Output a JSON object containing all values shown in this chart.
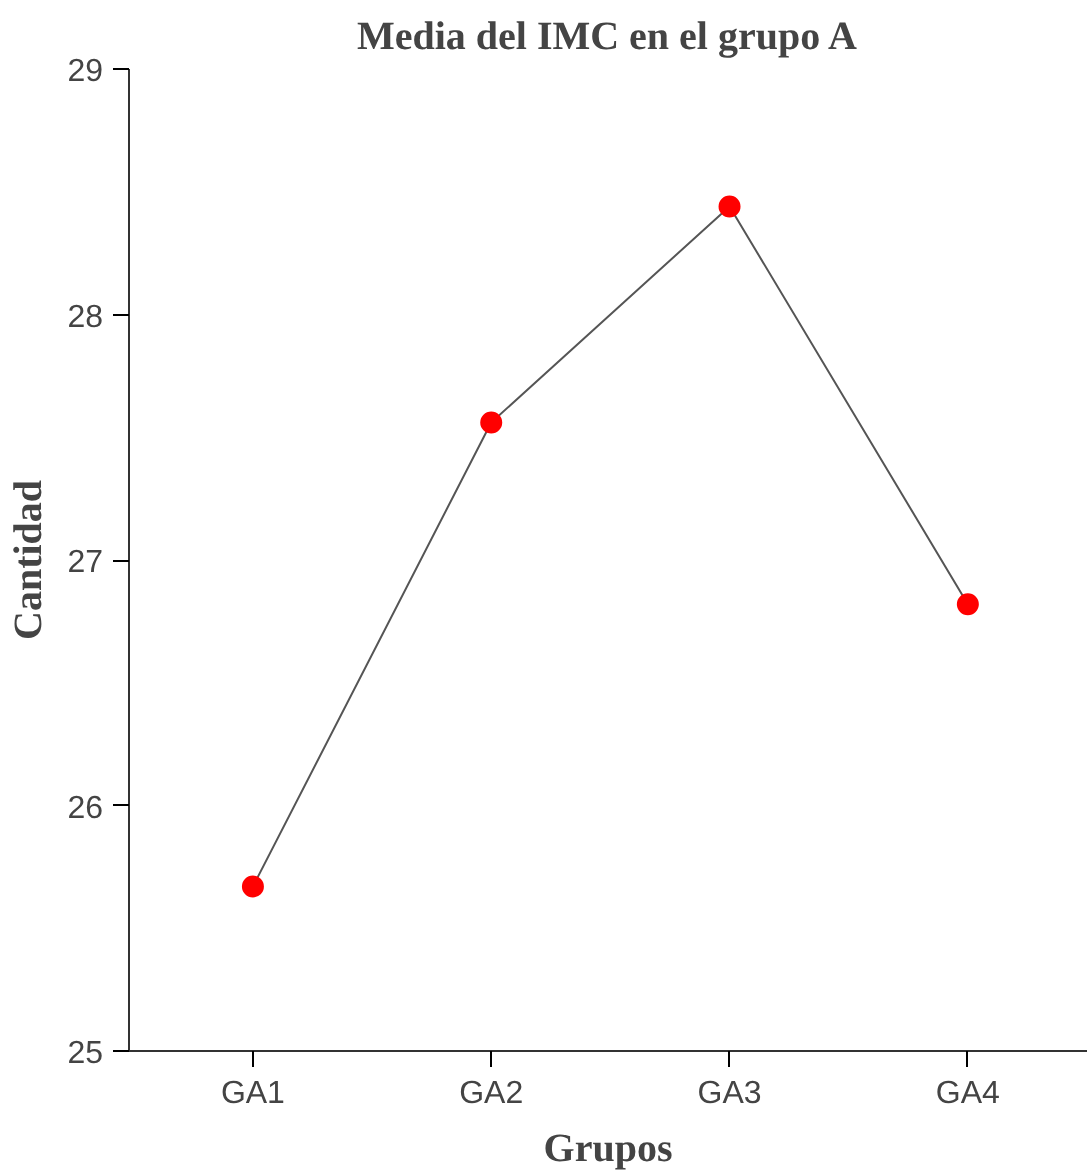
{
  "chart_data": {
    "type": "line",
    "title": "Media del IMC en el grupo A",
    "xlabel": "Grupos",
    "ylabel": "Cantidad",
    "categories": [
      "GA1",
      "GA2",
      "GA3",
      "GA4"
    ],
    "series": [
      {
        "color": "#ff0000",
        "values": [
          25.67,
          27.56,
          28.44,
          26.82
        ]
      }
    ],
    "ylim": [
      25,
      29
    ],
    "yticks": [
      25,
      26,
      27,
      28,
      29
    ],
    "marker": "circle",
    "line_style": "solid",
    "grid": false
  }
}
